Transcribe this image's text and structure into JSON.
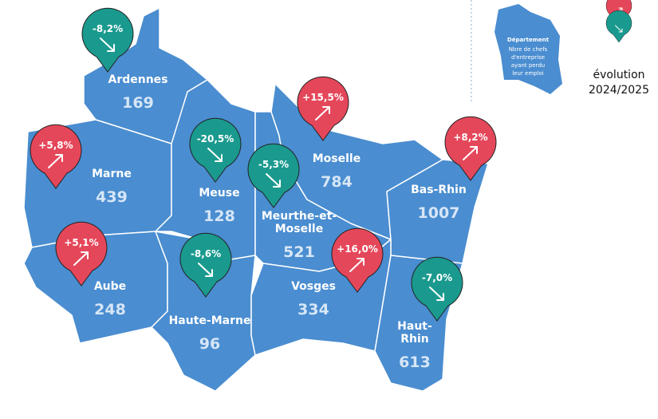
{
  "legend": {
    "title": "Département",
    "lines": [
      "Nbre de chefs",
      "d'entreprise",
      "ayant perdu",
      "leur emploi"
    ],
    "evolution": [
      "évolution",
      "2024/2025"
    ],
    "up_color": "#e5475a",
    "down_color": "#1a9a8e"
  },
  "departments": [
    {
      "name": [
        "Ardennes"
      ],
      "count": 169,
      "evolution": "-8,2%",
      "color": "#1a9a8e"
    },
    {
      "name": [
        "Marne"
      ],
      "count": 439,
      "evolution": "+5,8%",
      "color": "#e5475a"
    },
    {
      "name": [
        "Meuse"
      ],
      "count": 128,
      "evolution": "-20,5%",
      "color": "#1a9a8e"
    },
    {
      "name": [
        "Meurthe-et-",
        "Moselle"
      ],
      "count": 521,
      "evolution": "-5,3%",
      "color": "#1a9a8e"
    },
    {
      "name": [
        "Moselle"
      ],
      "count": 784,
      "evolution": "+15,5%",
      "color": "#e5475a"
    },
    {
      "name": [
        "Bas-Rhin"
      ],
      "count": 1007,
      "evolution": "+8,2%",
      "color": "#e5475a"
    },
    {
      "name": [
        "Aube"
      ],
      "count": 248,
      "evolution": "+5,1%",
      "color": "#e5475a"
    },
    {
      "name": [
        "Haute-Marne"
      ],
      "count": 96,
      "evolution": "-8,6%",
      "color": "#1a9a8e"
    },
    {
      "name": [
        "Vosges"
      ],
      "count": 334,
      "evolution": "+16,0%",
      "color": "#e5475a"
    },
    {
      "name": [
        "Haut-",
        "Rhin"
      ],
      "count": 613,
      "evolution": "-7,0%",
      "color": "#1a9a8e"
    }
  ]
}
